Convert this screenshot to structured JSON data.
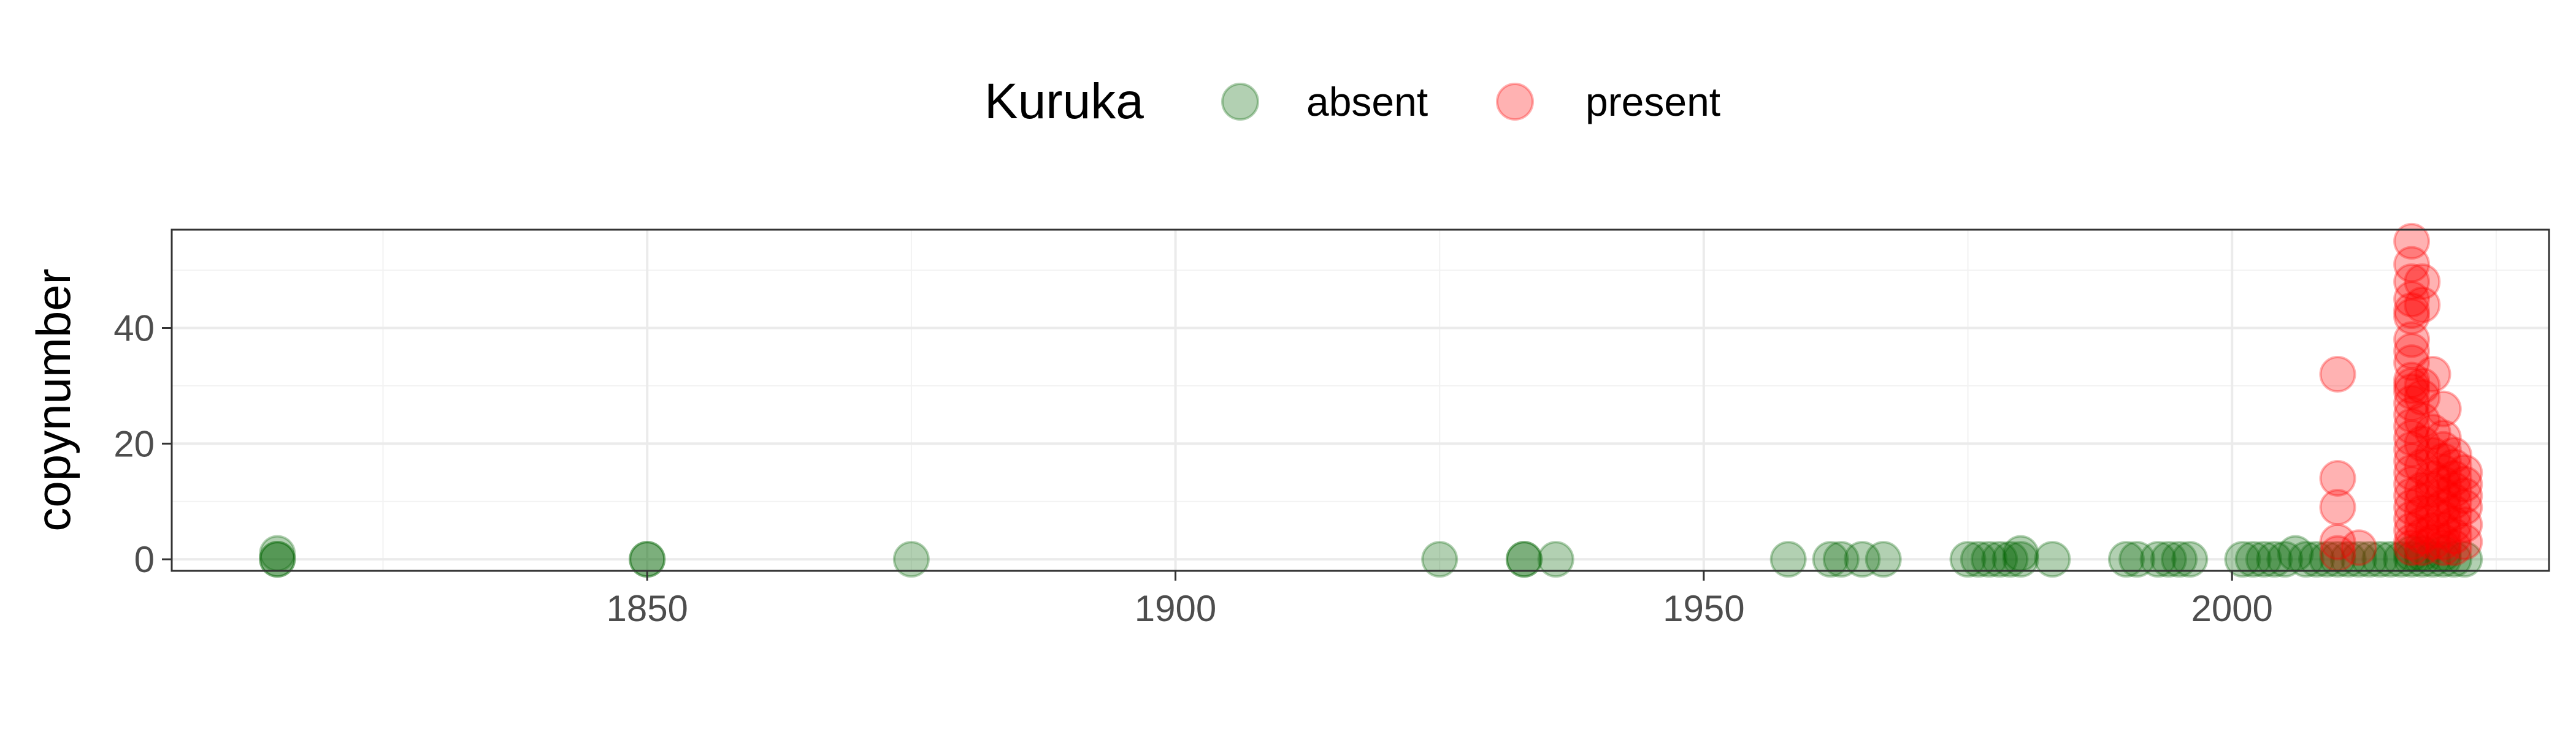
{
  "chart_data": {
    "type": "scatter",
    "title": "",
    "xlabel": "",
    "ylabel": "copynumber",
    "xlim": [
      1805,
      2030
    ],
    "ylim": [
      -2,
      57
    ],
    "x_ticks": [
      1850,
      1900,
      1950,
      2000
    ],
    "y_ticks": [
      0,
      20,
      40
    ],
    "grid": true,
    "legend": {
      "title": "Kuruka",
      "position": "top"
    },
    "series": [
      {
        "name": "absent",
        "color": "#006400",
        "points": [
          [
            1815,
            0
          ],
          [
            1815,
            1
          ],
          [
            1815,
            0
          ],
          [
            1850,
            0
          ],
          [
            1850,
            0
          ],
          [
            1875,
            0
          ],
          [
            1925,
            0
          ],
          [
            1933,
            0
          ],
          [
            1933,
            0
          ],
          [
            1936,
            0
          ],
          [
            1958,
            0
          ],
          [
            1962,
            0
          ],
          [
            1963,
            0
          ],
          [
            1965,
            0
          ],
          [
            1967,
            0
          ],
          [
            1975,
            0
          ],
          [
            1976,
            0
          ],
          [
            1977,
            0
          ],
          [
            1978,
            0
          ],
          [
            1979,
            0
          ],
          [
            1980,
            0
          ],
          [
            1980,
            1
          ],
          [
            1983,
            0
          ],
          [
            1990,
            0
          ],
          [
            1991,
            0
          ],
          [
            1993,
            0
          ],
          [
            1994,
            0
          ],
          [
            1995,
            0
          ],
          [
            1996,
            0
          ],
          [
            2001,
            0
          ],
          [
            2002,
            0
          ],
          [
            2003,
            0
          ],
          [
            2004,
            0
          ],
          [
            2005,
            0
          ],
          [
            2006,
            1
          ],
          [
            2007,
            0
          ],
          [
            2008,
            0
          ],
          [
            2009,
            0
          ],
          [
            2010,
            0
          ],
          [
            2011,
            0
          ],
          [
            2012,
            0
          ],
          [
            2013,
            0
          ],
          [
            2014,
            0
          ],
          [
            2015,
            0
          ],
          [
            2016,
            0
          ],
          [
            2017,
            0
          ],
          [
            2017,
            1
          ],
          [
            2018,
            0
          ],
          [
            2018,
            1
          ],
          [
            2019,
            0
          ],
          [
            2020,
            0
          ],
          [
            2020,
            1
          ],
          [
            2021,
            0
          ],
          [
            2022,
            0
          ]
        ]
      },
      {
        "name": "present",
        "color": "#ff0000",
        "points": [
          [
            2010,
            32
          ],
          [
            2010,
            14
          ],
          [
            2010,
            9
          ],
          [
            2010,
            3
          ],
          [
            2010,
            1
          ],
          [
            2012,
            2
          ],
          [
            2017,
            55
          ],
          [
            2017,
            51
          ],
          [
            2017,
            48
          ],
          [
            2017,
            45
          ],
          [
            2017,
            43
          ],
          [
            2017,
            42
          ],
          [
            2017,
            38
          ],
          [
            2017,
            36
          ],
          [
            2017,
            34
          ],
          [
            2017,
            31
          ],
          [
            2017,
            30
          ],
          [
            2017,
            29
          ],
          [
            2017,
            27
          ],
          [
            2017,
            25
          ],
          [
            2017,
            23
          ],
          [
            2017,
            21
          ],
          [
            2017,
            19
          ],
          [
            2017,
            17
          ],
          [
            2017,
            15
          ],
          [
            2017,
            13
          ],
          [
            2017,
            11
          ],
          [
            2017,
            9
          ],
          [
            2017,
            7
          ],
          [
            2017,
            5
          ],
          [
            2017,
            3
          ],
          [
            2017,
            2
          ],
          [
            2018,
            48
          ],
          [
            2018,
            44
          ],
          [
            2018,
            30
          ],
          [
            2018,
            28
          ],
          [
            2018,
            24
          ],
          [
            2018,
            20
          ],
          [
            2018,
            16
          ],
          [
            2018,
            12
          ],
          [
            2018,
            10
          ],
          [
            2018,
            8
          ],
          [
            2018,
            6
          ],
          [
            2018,
            4
          ],
          [
            2018,
            2
          ],
          [
            2019,
            32
          ],
          [
            2019,
            22
          ],
          [
            2019,
            18
          ],
          [
            2019,
            14
          ],
          [
            2019,
            12
          ],
          [
            2019,
            8
          ],
          [
            2019,
            5
          ],
          [
            2019,
            3
          ],
          [
            2020,
            26
          ],
          [
            2020,
            21
          ],
          [
            2020,
            19
          ],
          [
            2020,
            17
          ],
          [
            2020,
            15
          ],
          [
            2020,
            13
          ],
          [
            2020,
            11
          ],
          [
            2020,
            9
          ],
          [
            2020,
            7
          ],
          [
            2020,
            5
          ],
          [
            2020,
            3
          ],
          [
            2020,
            2
          ],
          [
            2021,
            18
          ],
          [
            2021,
            16
          ],
          [
            2021,
            14
          ],
          [
            2021,
            12
          ],
          [
            2021,
            10
          ],
          [
            2021,
            8
          ],
          [
            2021,
            6
          ],
          [
            2021,
            4
          ],
          [
            2021,
            2
          ],
          [
            2022,
            15
          ],
          [
            2022,
            13
          ],
          [
            2022,
            11
          ],
          [
            2022,
            9
          ],
          [
            2022,
            6
          ],
          [
            2022,
            3
          ]
        ]
      }
    ]
  }
}
